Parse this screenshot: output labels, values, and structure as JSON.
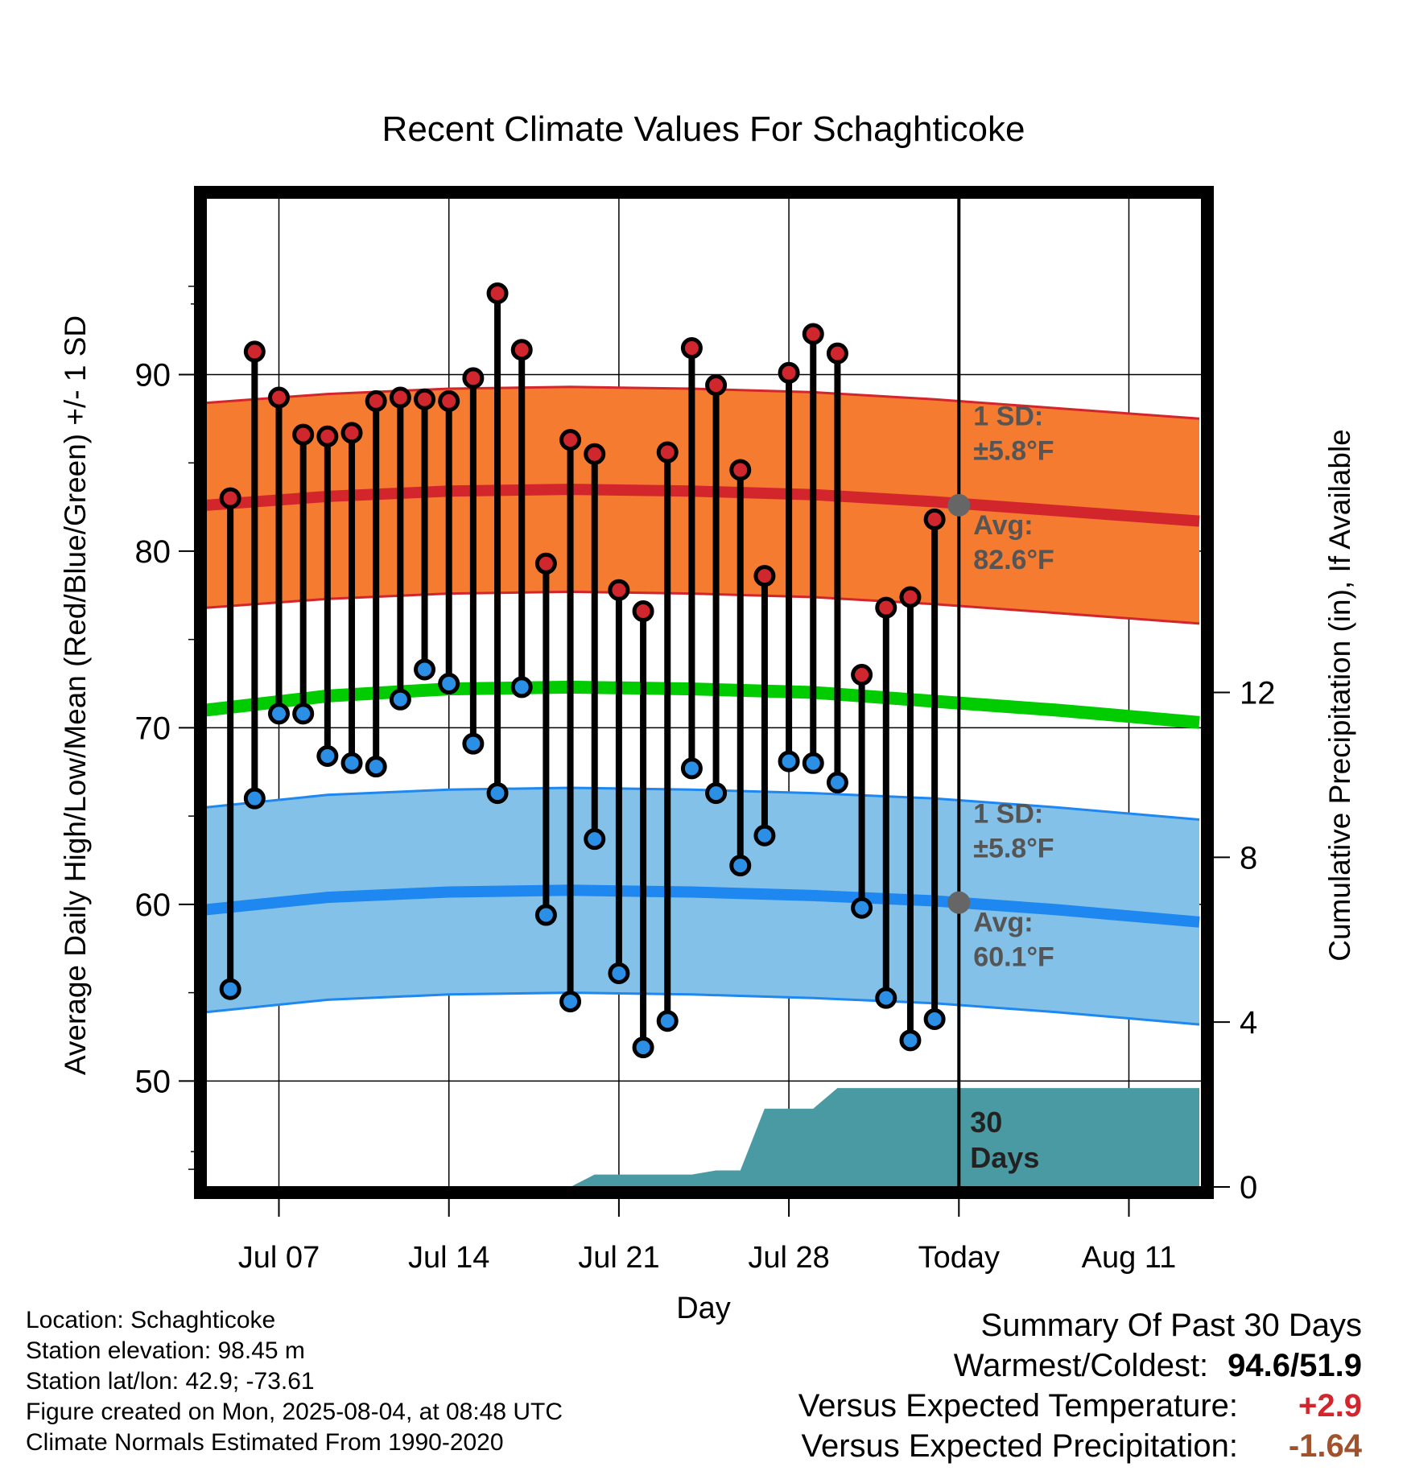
{
  "chart_data": {
    "type": "line",
    "title": "Recent Climate Values For Schaghticoke",
    "xlabel": "Day",
    "ylabel": "Average Daily High/Low/Mean (Red/Blue/Green) +/- 1 SD",
    "y2label": "Cumulative Precipitation (in), If Available",
    "ylim": [
      44,
      100
    ],
    "y2lim": [
      0,
      24
    ],
    "yticks": [
      50,
      60,
      70,
      80,
      90
    ],
    "y2ticks": [
      0,
      4,
      8,
      12
    ],
    "grid": true,
    "x_start_day": 4,
    "x_end_day": 45,
    "x_ticks": [
      {
        "day": 7,
        "label": "Jul 07"
      },
      {
        "day": 14,
        "label": "Jul 14"
      },
      {
        "day": 21,
        "label": "Jul 21"
      },
      {
        "day": 28,
        "label": "Jul 28"
      },
      {
        "day": 35,
        "label": "Today"
      },
      {
        "day": 42,
        "label": "Aug 11"
      }
    ],
    "today_day": 35,
    "observed": {
      "days": [
        5,
        6,
        7,
        8,
        9,
        10,
        11,
        12,
        13,
        14,
        15,
        16,
        17,
        18,
        19,
        20,
        21,
        22,
        23,
        24,
        25,
        26,
        27,
        28,
        29,
        30,
        31,
        32,
        33,
        34
      ],
      "highs": [
        83.0,
        91.3,
        88.7,
        86.6,
        86.5,
        86.7,
        88.5,
        88.7,
        88.6,
        88.5,
        89.8,
        94.6,
        91.4,
        79.3,
        86.3,
        85.5,
        77.8,
        76.6,
        85.6,
        91.5,
        89.4,
        84.6,
        78.6,
        90.1,
        92.3,
        91.2,
        73.0,
        76.8,
        77.4,
        81.8
      ],
      "lows": [
        55.2,
        66.0,
        70.8,
        70.8,
        68.4,
        68.0,
        67.8,
        71.6,
        73.3,
        72.5,
        69.1,
        66.3,
        72.3,
        59.4,
        54.5,
        63.7,
        56.1,
        51.9,
        53.4,
        67.7,
        66.3,
        62.2,
        63.9,
        68.1,
        68.0,
        66.9,
        59.8,
        54.7,
        52.3,
        53.5
      ]
    },
    "normals": {
      "days": [
        4,
        9,
        14,
        19,
        24,
        29,
        34,
        39,
        44.9
      ],
      "high_mean": [
        82.6,
        83.1,
        83.4,
        83.5,
        83.4,
        83.2,
        82.8,
        82.3,
        81.7
      ],
      "low_mean": [
        59.7,
        60.4,
        60.7,
        60.8,
        60.7,
        60.5,
        60.2,
        59.7,
        59.0
      ],
      "mean": [
        71.0,
        71.8,
        72.2,
        72.3,
        72.2,
        72.0,
        71.5,
        71.0,
        70.3
      ],
      "sd": 5.8
    },
    "precip_cumulative": {
      "days": [
        19,
        20,
        24,
        25,
        26,
        27,
        29,
        30,
        44.9
      ],
      "values": [
        0,
        0.3,
        0.3,
        0.4,
        0.4,
        1.9,
        1.9,
        2.4,
        2.4
      ]
    },
    "annotations": {
      "high_sd": "1 SD:",
      "high_sd_value": "±5.8°F",
      "high_avg": "Avg:",
      "high_avg_value": "82.6°F",
      "low_sd": "1 SD:",
      "low_sd_value": "±5.8°F",
      "low_avg": "Avg:",
      "low_avg_value": "60.1°F",
      "period_num": "30",
      "period_unit": "Days"
    },
    "colors": {
      "high_band": "#f47b30",
      "high_line": "#d3262c",
      "low_band": "#83c1e8",
      "low_line": "#1e88f0",
      "mean_line": "#00cc00",
      "precip": "#4a9aa3",
      "high_marker": "#d0262d",
      "low_marker": "#2b8fe6",
      "annotation": "#555555"
    }
  },
  "info": {
    "location": "Location: Schaghticoke",
    "elevation": "Station elevation: 98.45 m",
    "latlon": "Station lat/lon: 42.9; -73.61",
    "created": "Figure created on Mon, 2025-08-04, at 08:48 UTC",
    "normals": "Climate Normals Estimated From 1990-2020"
  },
  "summary": {
    "title": "Summary Of Past 30 Days",
    "warm_cold_label": "Warmest/Coldest:",
    "warm_cold_value": "94.6/51.9",
    "temp_label": "Versus Expected Temperature:",
    "temp_value": "+2.9",
    "temp_color": "#d3262c",
    "precip_label": "Versus Expected Precipitation:",
    "precip_value": "-1.64",
    "precip_color": "#a0522d"
  }
}
